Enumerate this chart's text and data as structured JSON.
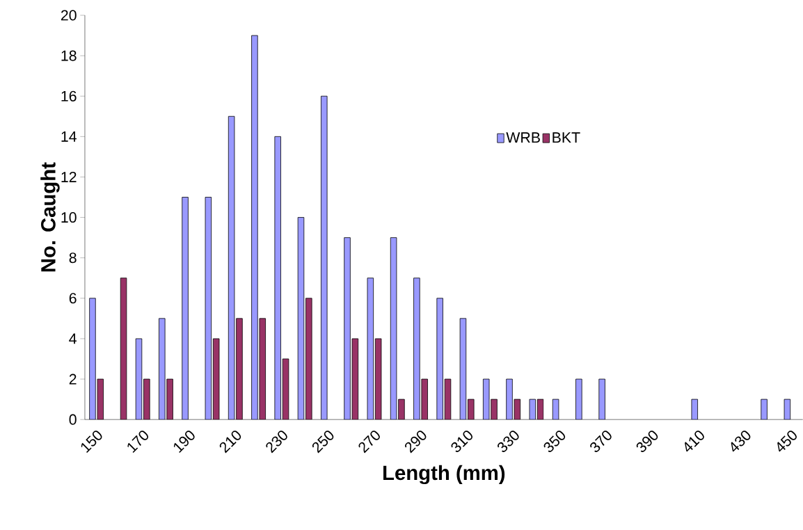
{
  "chart_data": {
    "type": "bar",
    "xlabel": "Length (mm)",
    "ylabel": "No. Caught",
    "categories": [
      "150",
      null,
      "170",
      null,
      "190",
      null,
      "210",
      null,
      "230",
      null,
      "250",
      null,
      "270",
      null,
      "290",
      null,
      "310",
      null,
      "330",
      null,
      "350",
      null,
      "370",
      null,
      "390",
      null,
      "410",
      null,
      "430",
      null,
      "450"
    ],
    "series": [
      {
        "name": "WRB",
        "color": "#9999ff",
        "values": [
          6,
          0,
          4,
          5,
          11,
          11,
          15,
          19,
          14,
          10,
          16,
          9,
          7,
          9,
          7,
          6,
          5,
          2,
          2,
          1,
          1,
          2,
          2,
          0,
          0,
          0,
          1,
          0,
          0,
          1,
          1
        ]
      },
      {
        "name": "BKT",
        "color": "#993366",
        "values": [
          2,
          7,
          2,
          2,
          0,
          4,
          5,
          5,
          3,
          6,
          0,
          4,
          4,
          1,
          2,
          2,
          1,
          1,
          1,
          1,
          0,
          0,
          0,
          0,
          0,
          0,
          0,
          0,
          0,
          0,
          0
        ]
      }
    ],
    "ylim": [
      0,
      20
    ],
    "yticks": [
      0,
      2,
      4,
      6,
      8,
      10,
      12,
      14,
      16,
      18,
      20
    ],
    "grid": false,
    "legend": "top right"
  }
}
